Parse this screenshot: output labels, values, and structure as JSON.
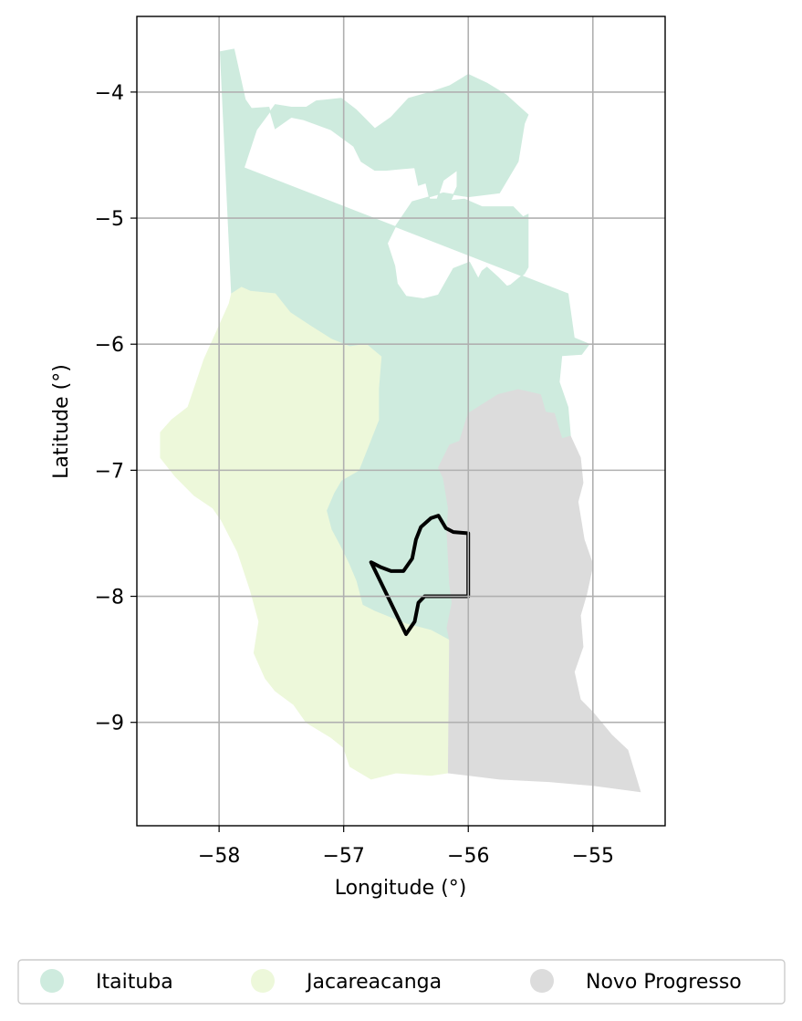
{
  "chart_data": {
    "type": "choropleth-map",
    "xlabel": "Longitude (°)",
    "ylabel": "Latitude (°)",
    "xlim": [
      -58.66,
      -54.42
    ],
    "ylim": [
      -9.82,
      -3.4
    ],
    "grid": true,
    "legend_position": "bottom-outside",
    "xticks": [
      {
        "value": -58,
        "label": "−58"
      },
      {
        "value": -57,
        "label": "−57"
      },
      {
        "value": -56,
        "label": "−56"
      },
      {
        "value": -55,
        "label": "−55"
      }
    ],
    "yticks": [
      {
        "value": -4,
        "label": "−4"
      },
      {
        "value": -5,
        "label": "−5"
      },
      {
        "value": -6,
        "label": "−6"
      },
      {
        "value": -7,
        "label": "−7"
      },
      {
        "value": -8,
        "label": "−8"
      },
      {
        "value": -9,
        "label": "−9"
      }
    ],
    "regions": [
      {
        "name": "Itaituba",
        "color": "#ceebde",
        "boundary": [
          [
            -57.99,
            -3.68
          ],
          [
            -57.88,
            -3.66
          ],
          [
            -57.79,
            -4.06
          ],
          [
            -57.74,
            -4.13
          ],
          [
            -57.6,
            -4.12
          ],
          [
            -57.55,
            -4.29
          ],
          [
            -57.42,
            -4.2
          ],
          [
            -57.32,
            -4.22
          ],
          [
            -57.1,
            -4.3
          ],
          [
            -56.92,
            -4.43
          ],
          [
            -56.86,
            -4.55
          ],
          [
            -56.75,
            -4.62
          ],
          [
            -56.66,
            -4.62
          ],
          [
            -56.56,
            -4.61
          ],
          [
            -56.43,
            -4.6
          ],
          [
            -56.4,
            -4.74
          ],
          [
            -56.34,
            -4.72
          ],
          [
            -56.31,
            -4.85
          ],
          [
            -56.25,
            -4.85
          ],
          [
            -56.2,
            -4.7
          ],
          [
            -56.09,
            -4.62
          ],
          [
            -56.09,
            -4.75
          ],
          [
            -56.14,
            -4.86
          ],
          [
            -56.03,
            -4.85
          ],
          [
            -55.89,
            -4.91
          ],
          [
            -55.64,
            -4.91
          ],
          [
            -55.56,
            -4.99
          ],
          [
            -55.52,
            -4.97
          ],
          [
            -55.52,
            -5.39
          ],
          [
            -55.55,
            -5.44
          ],
          [
            -55.66,
            -5.53
          ],
          [
            -55.69,
            -5.54
          ],
          [
            -55.76,
            -5.47
          ],
          [
            -55.85,
            -5.39
          ],
          [
            -55.89,
            -5.42
          ],
          [
            -55.92,
            -5.48
          ],
          [
            -55.99,
            -5.35
          ],
          [
            -56.12,
            -5.4
          ],
          [
            -56.24,
            -5.61
          ],
          [
            -56.36,
            -5.64
          ],
          [
            -56.5,
            -5.62
          ],
          [
            -56.57,
            -5.52
          ],
          [
            -56.59,
            -5.38
          ],
          [
            -56.65,
            -5.2
          ],
          [
            -56.58,
            -5.06
          ],
          [
            -56.45,
            -4.87
          ],
          [
            -56.2,
            -4.8
          ],
          [
            -56.0,
            -4.83
          ],
          [
            -55.75,
            -4.8
          ],
          [
            -55.6,
            -4.55
          ],
          [
            -55.55,
            -4.25
          ],
          [
            -55.52,
            -4.18
          ],
          [
            -55.7,
            -4.02
          ],
          [
            -55.85,
            -3.93
          ],
          [
            -56.0,
            -3.86
          ],
          [
            -56.15,
            -3.95
          ],
          [
            -56.3,
            -4.0
          ],
          [
            -56.48,
            -4.05
          ],
          [
            -56.62,
            -4.2
          ],
          [
            -56.75,
            -4.29
          ],
          [
            -56.9,
            -4.14
          ],
          [
            -57.02,
            -4.05
          ],
          [
            -57.12,
            -4.06
          ],
          [
            -57.22,
            -4.07
          ],
          [
            -57.3,
            -4.12
          ],
          [
            -57.42,
            -4.12
          ],
          [
            -57.55,
            -4.1
          ],
          [
            -57.7,
            -4.3
          ],
          [
            -57.8,
            -4.6
          ],
          [
            -55.2,
            -5.6
          ],
          [
            -55.15,
            -5.95
          ],
          [
            -55.03,
            -6.0
          ],
          [
            -55.09,
            -6.08
          ],
          [
            -55.25,
            -6.09
          ],
          [
            -55.27,
            -6.3
          ],
          [
            -55.2,
            -6.5
          ],
          [
            -55.18,
            -6.73
          ],
          [
            -55.25,
            -6.75
          ],
          [
            -55.31,
            -6.55
          ],
          [
            -55.38,
            -6.54
          ],
          [
            -55.42,
            -6.4
          ],
          [
            -55.6,
            -6.36
          ],
          [
            -55.76,
            -6.4
          ],
          [
            -56.0,
            -6.55
          ],
          [
            -56.07,
            -6.77
          ],
          [
            -56.15,
            -6.8
          ],
          [
            -56.24,
            -6.98
          ],
          [
            -56.2,
            -7.06
          ],
          [
            -56.16,
            -7.3
          ],
          [
            -56.17,
            -7.5
          ],
          [
            -56.15,
            -7.9
          ],
          [
            -56.13,
            -8.05
          ],
          [
            -56.17,
            -8.25
          ],
          [
            -56.15,
            -8.35
          ],
          [
            -56.3,
            -8.27
          ],
          [
            -56.5,
            -8.22
          ],
          [
            -56.75,
            -8.12
          ],
          [
            -56.85,
            -8.07
          ],
          [
            -56.9,
            -7.88
          ],
          [
            -56.96,
            -7.74
          ],
          [
            -57.03,
            -7.6
          ],
          [
            -57.1,
            -7.47
          ],
          [
            -57.14,
            -7.32
          ],
          [
            -57.08,
            -7.18
          ],
          [
            -57.02,
            -7.08
          ],
          [
            -56.88,
            -7.0
          ],
          [
            -56.8,
            -6.8
          ],
          [
            -56.72,
            -6.6
          ],
          [
            -56.72,
            -6.35
          ],
          [
            -56.7,
            -6.1
          ],
          [
            -56.82,
            -6.0
          ],
          [
            -56.95,
            -6.02
          ],
          [
            -57.1,
            -5.96
          ],
          [
            -57.26,
            -5.86
          ],
          [
            -57.43,
            -5.75
          ],
          [
            -57.55,
            -5.6
          ],
          [
            -57.75,
            -5.58
          ],
          [
            -57.82,
            -5.55
          ],
          [
            -57.9,
            -5.6
          ]
        ]
      },
      {
        "name": "Jacareacanga",
        "color": "#edf8da",
        "boundary": [
          [
            -57.9,
            -5.6
          ],
          [
            -57.82,
            -5.55
          ],
          [
            -57.75,
            -5.58
          ],
          [
            -57.55,
            -5.6
          ],
          [
            -57.43,
            -5.75
          ],
          [
            -57.26,
            -5.86
          ],
          [
            -57.1,
            -5.96
          ],
          [
            -56.95,
            -6.02
          ],
          [
            -56.82,
            -6.0
          ],
          [
            -56.7,
            -6.1
          ],
          [
            -56.72,
            -6.35
          ],
          [
            -56.72,
            -6.6
          ],
          [
            -56.8,
            -6.8
          ],
          [
            -56.88,
            -7.0
          ],
          [
            -57.02,
            -7.08
          ],
          [
            -57.08,
            -7.18
          ],
          [
            -57.14,
            -7.32
          ],
          [
            -57.1,
            -7.47
          ],
          [
            -57.03,
            -7.6
          ],
          [
            -56.96,
            -7.74
          ],
          [
            -56.9,
            -7.88
          ],
          [
            -56.85,
            -8.07
          ],
          [
            -56.75,
            -8.12
          ],
          [
            -56.5,
            -8.22
          ],
          [
            -56.3,
            -8.27
          ],
          [
            -56.15,
            -8.35
          ],
          [
            -56.16,
            -9.4
          ],
          [
            -56.3,
            -9.42
          ],
          [
            -56.58,
            -9.4
          ],
          [
            -56.78,
            -9.45
          ],
          [
            -56.95,
            -9.35
          ],
          [
            -57.0,
            -9.2
          ],
          [
            -57.1,
            -9.12
          ],
          [
            -57.3,
            -9.0
          ],
          [
            -57.4,
            -8.86
          ],
          [
            -57.55,
            -8.75
          ],
          [
            -57.63,
            -8.65
          ],
          [
            -57.72,
            -8.45
          ],
          [
            -57.68,
            -8.2
          ],
          [
            -57.75,
            -7.95
          ],
          [
            -57.85,
            -7.65
          ],
          [
            -57.98,
            -7.4
          ],
          [
            -58.05,
            -7.3
          ],
          [
            -58.2,
            -7.2
          ],
          [
            -58.35,
            -7.05
          ],
          [
            -58.47,
            -6.9
          ],
          [
            -58.47,
            -6.7
          ],
          [
            -58.38,
            -6.6
          ],
          [
            -58.25,
            -6.5
          ],
          [
            -58.12,
            -6.12
          ],
          [
            -58.02,
            -5.9
          ],
          [
            -57.92,
            -5.68
          ]
        ]
      },
      {
        "name": "Novo Progresso",
        "color": "#dcdcdc",
        "boundary": [
          [
            -55.76,
            -6.4
          ],
          [
            -55.6,
            -6.36
          ],
          [
            -55.42,
            -6.4
          ],
          [
            -55.38,
            -6.54
          ],
          [
            -55.31,
            -6.55
          ],
          [
            -55.25,
            -6.75
          ],
          [
            -55.18,
            -6.73
          ],
          [
            -55.1,
            -6.9
          ],
          [
            -55.08,
            -7.1
          ],
          [
            -55.12,
            -7.25
          ],
          [
            -55.07,
            -7.55
          ],
          [
            -55.0,
            -7.75
          ],
          [
            -55.05,
            -7.98
          ],
          [
            -55.1,
            -8.15
          ],
          [
            -55.08,
            -8.4
          ],
          [
            -55.15,
            -8.6
          ],
          [
            -55.1,
            -8.82
          ],
          [
            -55.0,
            -8.92
          ],
          [
            -54.85,
            -9.1
          ],
          [
            -54.72,
            -9.22
          ],
          [
            -54.65,
            -9.45
          ],
          [
            -54.62,
            -9.55
          ],
          [
            -55.0,
            -9.5
          ],
          [
            -55.35,
            -9.47
          ],
          [
            -55.75,
            -9.45
          ],
          [
            -56.16,
            -9.4
          ],
          [
            -56.15,
            -8.35
          ],
          [
            -56.17,
            -8.25
          ],
          [
            -56.13,
            -8.05
          ],
          [
            -56.15,
            -7.9
          ],
          [
            -56.17,
            -7.5
          ],
          [
            -56.16,
            -7.3
          ],
          [
            -56.2,
            -7.06
          ],
          [
            -56.24,
            -6.98
          ],
          [
            -56.15,
            -6.8
          ],
          [
            -56.07,
            -6.77
          ],
          [
            -56.0,
            -6.55
          ]
        ]
      }
    ],
    "outlines": [
      {
        "name": "highlighted-area",
        "color": "#000000",
        "thick": true,
        "points": [
          [
            -56.78,
            -7.73
          ],
          [
            -56.7,
            -7.77
          ],
          [
            -56.62,
            -7.8
          ],
          [
            -56.52,
            -7.8
          ],
          [
            -56.45,
            -7.7
          ],
          [
            -56.42,
            -7.55
          ],
          [
            -56.38,
            -7.45
          ],
          [
            -56.3,
            -7.38
          ],
          [
            -56.24,
            -7.36
          ],
          [
            -56.18,
            -7.46
          ],
          [
            -56.12,
            -7.49
          ],
          [
            -56.0,
            -7.5
          ],
          [
            -56.0,
            -8.0
          ],
          [
            -56.35,
            -8.0
          ],
          [
            -56.4,
            -8.05
          ],
          [
            -56.43,
            -8.2
          ],
          [
            -56.5,
            -8.3
          ],
          [
            -56.78,
            -7.73
          ]
        ]
      }
    ]
  },
  "legend": {
    "items": [
      {
        "label": "Itaituba",
        "color": "#ceebde"
      },
      {
        "label": "Jacareacanga",
        "color": "#edf8da"
      },
      {
        "label": "Novo Progresso",
        "color": "#dcdcdc"
      }
    ]
  }
}
